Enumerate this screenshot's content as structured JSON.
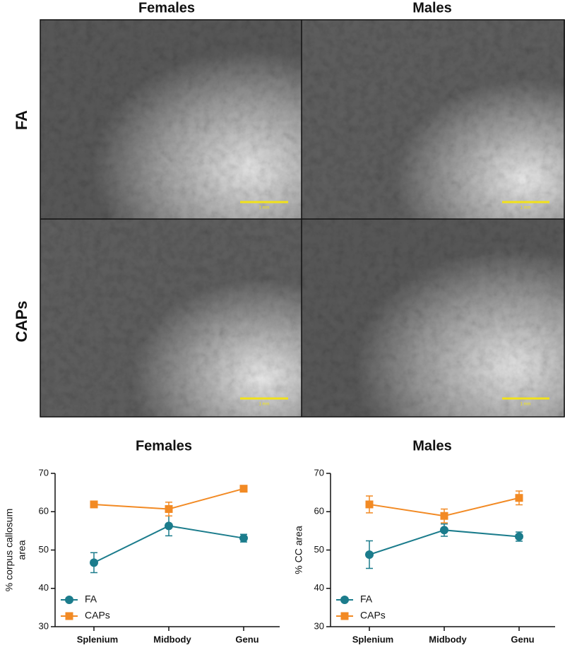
{
  "figure": {
    "column_labels": [
      "Females",
      "Males"
    ],
    "row_labels": [
      "FA",
      "CAPs"
    ],
    "scale_bar_label": "1 mm"
  },
  "chart_data": [
    {
      "type": "line",
      "title": "Females",
      "y_label": [
        "% corpus callosum",
        "area"
      ],
      "categories": [
        "Splenium",
        "Midbody",
        "Genu"
      ],
      "ylim": [
        30,
        70
      ],
      "yticks": [
        30,
        40,
        50,
        60,
        70
      ],
      "legend": "lower left",
      "series": [
        {
          "name": "FA",
          "color": "#1b7c8c",
          "marker": "circle",
          "values": [
            46.7,
            56.3,
            53.1
          ],
          "errors": [
            2.6,
            2.6,
            1.0
          ]
        },
        {
          "name": "CAPs",
          "color": "#f28a24",
          "marker": "square",
          "values": [
            61.9,
            60.7,
            66.0
          ],
          "errors": [
            0.5,
            1.8,
            0.5
          ]
        }
      ]
    },
    {
      "type": "line",
      "title": "Males",
      "y_label": [
        "% CC area"
      ],
      "categories": [
        "Splenium",
        "Midbody",
        "Genu"
      ],
      "ylim": [
        30,
        70
      ],
      "yticks": [
        30,
        40,
        50,
        60,
        70
      ],
      "legend": "lower left",
      "series": [
        {
          "name": "FA",
          "color": "#1b7c8c",
          "marker": "circle",
          "values": [
            48.8,
            55.2,
            53.5
          ],
          "errors": [
            3.6,
            1.6,
            1.2
          ]
        },
        {
          "name": "CAPs",
          "color": "#f28a24",
          "marker": "square",
          "values": [
            61.9,
            58.9,
            63.6
          ],
          "errors": [
            2.2,
            1.8,
            1.8
          ]
        }
      ]
    }
  ]
}
